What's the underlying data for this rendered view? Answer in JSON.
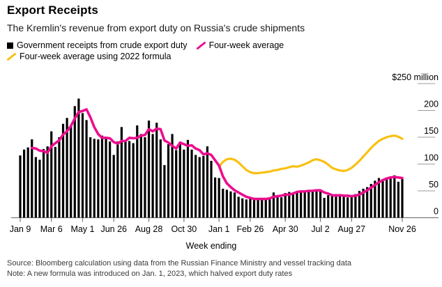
{
  "header": {
    "title": "Export Receipts",
    "subtitle": "The Kremlin's revenue from export duty on Russia's crude shipments"
  },
  "legend": {
    "items": [
      {
        "label": "Government receipts from crude export duty",
        "marker": "square",
        "color": "#000000"
      },
      {
        "label": "Four-week average",
        "marker": "slash",
        "color": "#ec0d8e"
      },
      {
        "label": "Four-week average using 2022 formula",
        "marker": "slash",
        "color": "#f9c013"
      }
    ]
  },
  "chart_data": {
    "type": "bar",
    "title": "Export Receipts",
    "xlabel": "Week ending",
    "ylabel": "$ million",
    "ylim": [
      0,
      250
    ],
    "grid": "right-tick-stubs-only",
    "legend_position": "top",
    "yticks": [
      0,
      50,
      100,
      150,
      200,
      250
    ],
    "ytick_labels": [
      "0",
      "50",
      "100",
      "150",
      "200",
      "$250 million"
    ],
    "x_ticks": [
      {
        "label": "Jan 9",
        "index": 0
      },
      {
        "label": "Mar 6",
        "index": 8
      },
      {
        "label": "May 1",
        "index": 16
      },
      {
        "label": "Jun 26",
        "index": 24
      },
      {
        "label": "Aug 28",
        "index": 33
      },
      {
        "label": "Oct 30",
        "index": 42
      },
      {
        "label": "Jan 1",
        "index": 51
      },
      {
        "label": "Feb 26",
        "index": 59
      },
      {
        "label": "Apr 30",
        "index": 68
      },
      {
        "label": "Jul 2",
        "index": 77
      },
      {
        "label": "Aug 27",
        "index": 85
      },
      {
        "label": "Nov 26",
        "index": 98
      }
    ],
    "series": [
      {
        "name": "Government receipts from crude export duty",
        "type": "bar",
        "color": "#000000",
        "values": [
          116,
          127,
          131,
          146,
          113,
          108,
          128,
          133,
          161,
          132,
          150,
          175,
          186,
          171,
          208,
          222,
          195,
          182,
          150,
          147,
          146,
          153,
          151,
          142,
          117,
          142,
          169,
          142,
          143,
          139,
          172,
          156,
          150,
          181,
          156,
          177,
          146,
          98,
          137,
          156,
          126,
          139,
          127,
          145,
          127,
          117,
          113,
          115,
          133,
          106,
          75,
          74,
          54,
          52,
          49,
          47,
          39,
          36,
          34,
          37,
          33,
          34,
          37,
          35,
          36,
          47,
          41,
          38,
          46,
          48,
          47,
          49,
          50,
          49,
          50,
          52,
          51,
          49,
          37,
          42,
          41,
          44,
          41,
          39,
          38,
          41,
          44,
          50,
          54,
          57,
          63,
          69,
          74,
          72,
          75,
          77,
          79,
          67,
          72
        ]
      },
      {
        "name": "Four-week average",
        "type": "line",
        "color": "#ec0d8e",
        "values": [
          null,
          null,
          null,
          130,
          129,
          125,
          124,
          121,
          133,
          139,
          144,
          155,
          161,
          171,
          185,
          197,
          199,
          202,
          187,
          169,
          156,
          149,
          149,
          148,
          141,
          138,
          143,
          143,
          149,
          148,
          149,
          153,
          154,
          165,
          161,
          166,
          165,
          144,
          140,
          134,
          129,
          140,
          137,
          134,
          135,
          129,
          126,
          118,
          120,
          117,
          107,
          97,
          77,
          64,
          57,
          51,
          47,
          43,
          39,
          37,
          35,
          35,
          35,
          35,
          36,
          39,
          40,
          41,
          43,
          43,
          45,
          48,
          49,
          49,
          50,
          50,
          51,
          51,
          47,
          45,
          42,
          41,
          42,
          41,
          41,
          40,
          41,
          43,
          47,
          51,
          56,
          61,
          66,
          70,
          73,
          75,
          76,
          75,
          74
        ]
      },
      {
        "name": "Four-week average using 2022 formula",
        "type": "line",
        "color": "#f9c013",
        "values": [
          null,
          null,
          null,
          null,
          null,
          null,
          null,
          null,
          null,
          null,
          null,
          null,
          null,
          null,
          null,
          null,
          null,
          null,
          null,
          null,
          null,
          null,
          null,
          null,
          null,
          null,
          null,
          null,
          null,
          null,
          null,
          null,
          null,
          null,
          null,
          null,
          null,
          null,
          null,
          null,
          null,
          null,
          null,
          null,
          null,
          null,
          null,
          null,
          null,
          null,
          null,
          95,
          104,
          109,
          110,
          108,
          103,
          96,
          89,
          85,
          83,
          83,
          84,
          85,
          86,
          88,
          89,
          91,
          92,
          94,
          96,
          95,
          97,
          100,
          103,
          107,
          109,
          107,
          104,
          99,
          93,
          90,
          88,
          87,
          89,
          93,
          99,
          106,
          114,
          122,
          130,
          137,
          143,
          147,
          150,
          152,
          153,
          151,
          147
        ]
      }
    ]
  },
  "footer": {
    "source": "Source: Bloomberg calculation using data from the Russian Finance Ministry and vessel tracking data",
    "note": "Note: A new formula was introduced on Jan. 1, 2023, which halved export duty rates"
  }
}
